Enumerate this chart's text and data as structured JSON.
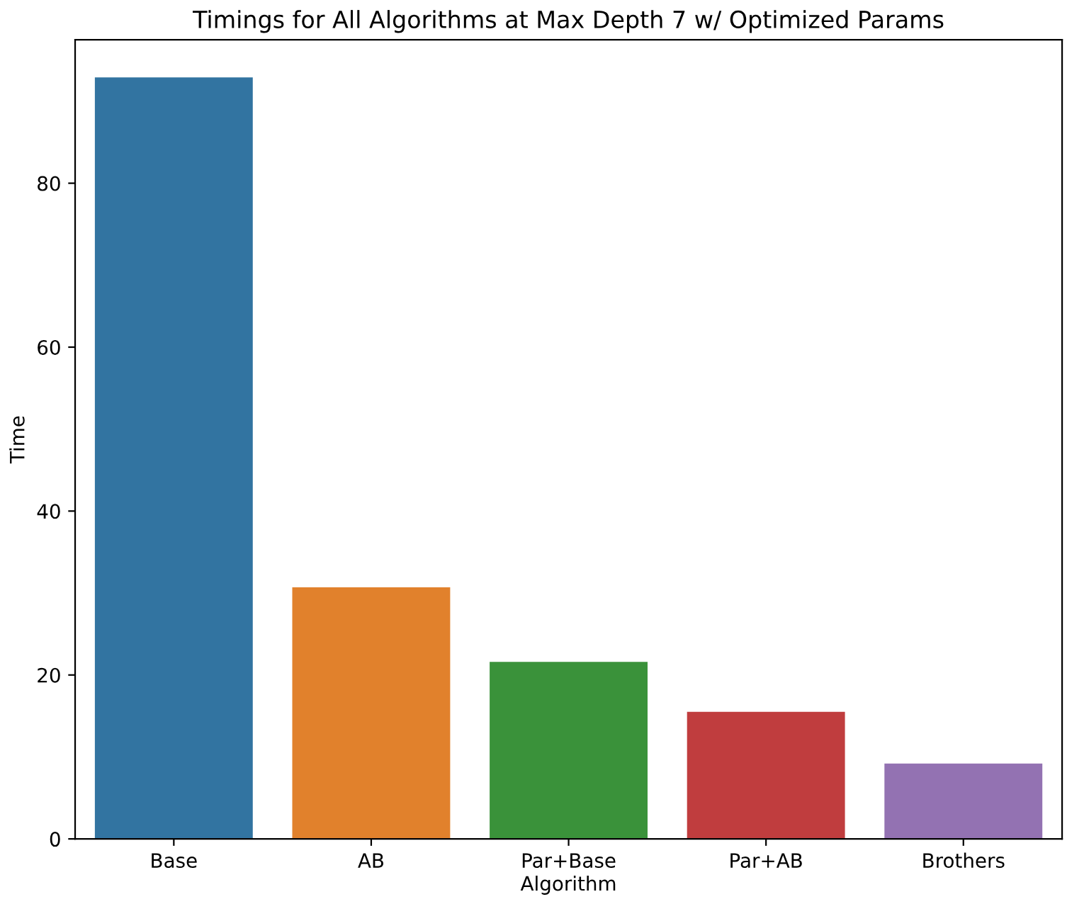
{
  "chart_data": {
    "type": "bar",
    "title": "Timings for All Algorithms at Max Depth 7 w/ Optimized Params",
    "xlabel": "Algorithm",
    "ylabel": "Time",
    "categories": [
      "Base",
      "AB",
      "Par+Base",
      "Par+AB",
      "Brothers"
    ],
    "values": [
      92.9,
      30.7,
      21.6,
      15.5,
      9.2
    ],
    "colors": [
      "#3274a1",
      "#e1812c",
      "#3a923a",
      "#c03d3e",
      "#9372b2"
    ],
    "ylim": [
      0,
      97.5
    ],
    "yticks": [
      0,
      20,
      40,
      60,
      80
    ],
    "grid": false,
    "legend": false
  }
}
